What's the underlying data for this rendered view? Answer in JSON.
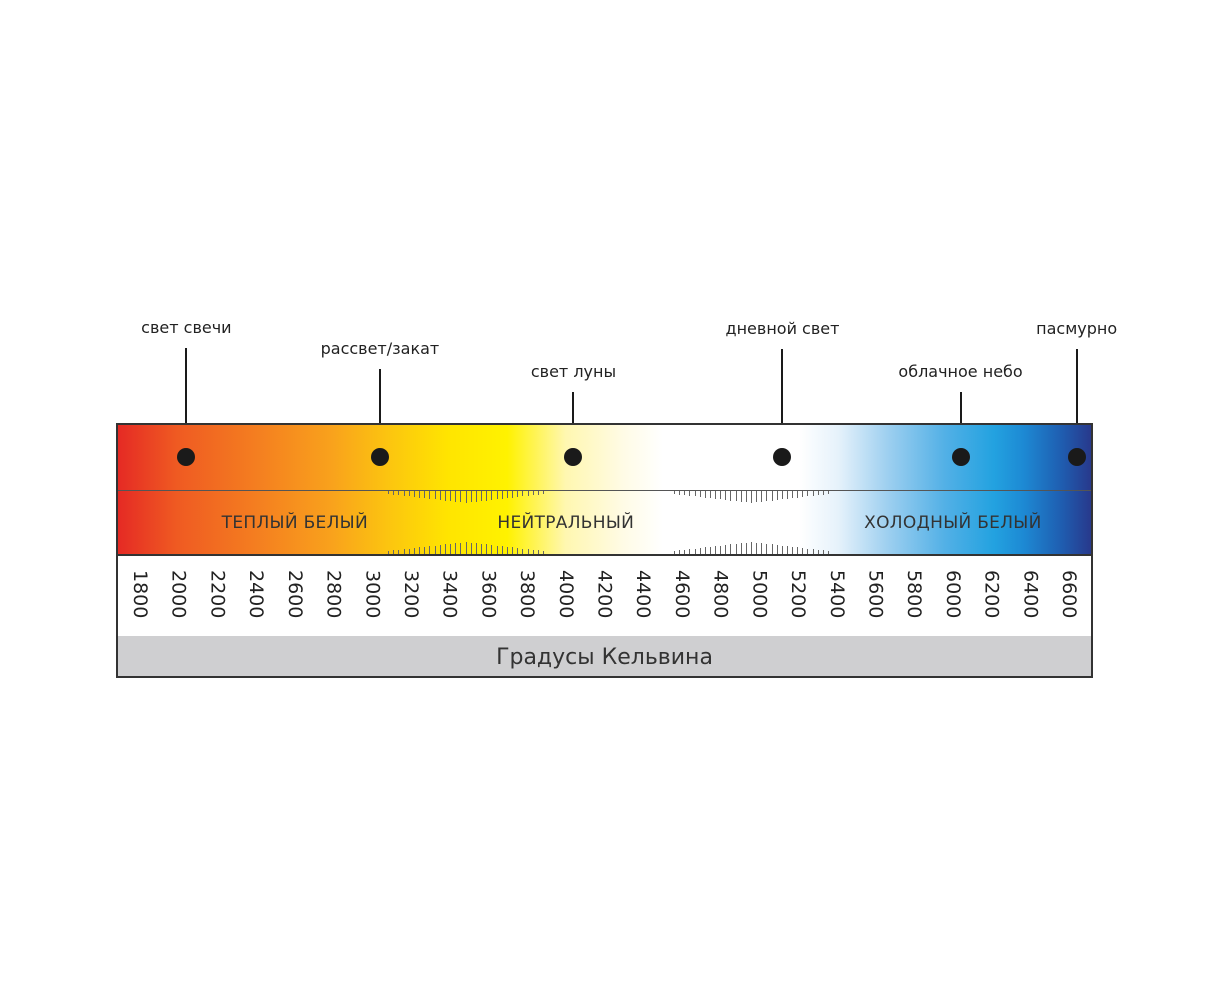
{
  "callouts": [
    {
      "label": "свет свечи",
      "kelvin": 2050
    },
    {
      "label": "рассвет/закат",
      "kelvin": 3050
    },
    {
      "label": "свет луны",
      "kelvin": 4050
    },
    {
      "label": "дневной свет",
      "kelvin": 5130
    },
    {
      "label": "облачное небо",
      "kelvin": 6050
    },
    {
      "label": "пасмурно",
      "kelvin": 6650
    }
  ],
  "zones": [
    {
      "label": "ТЕПЛЫЙ БЕЛЫЙ",
      "kelvin": 2600
    },
    {
      "label": "НЕЙТРАЛЬНЫЙ",
      "kelvin": 4000
    },
    {
      "label": "ХОЛОДНЫЙ БЕЛЫЙ",
      "kelvin": 6000
    }
  ],
  "ticks": [
    "1800",
    "2000",
    "2200",
    "2400",
    "2600",
    "2800",
    "3000",
    "3200",
    "3400",
    "3600",
    "3800",
    "4000",
    "4200",
    "4400",
    "4600",
    "4800",
    "5000",
    "5200",
    "5400",
    "5600",
    "5800",
    "6000",
    "6200",
    "6400",
    "6600"
  ],
  "footer": "Градусы Кельвина",
  "colors": {
    "warm": "#e52a24",
    "yellow": "#ffe500",
    "neutral": "#ffffff",
    "cool": "#23a2e0",
    "deep": "#28398c"
  }
}
